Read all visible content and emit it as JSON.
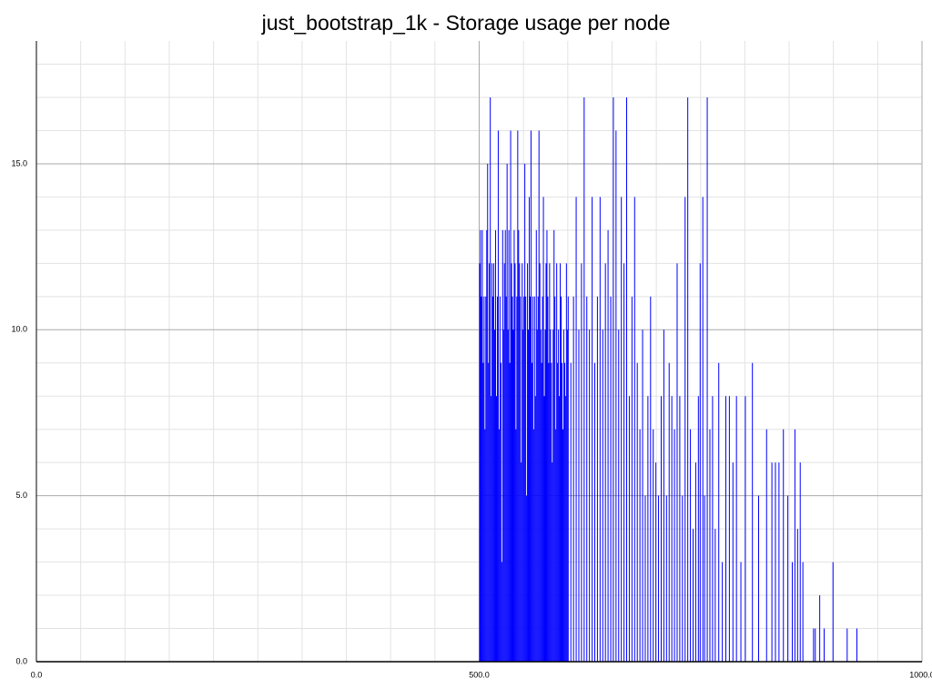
{
  "chart_data": {
    "type": "bar",
    "title": "just_bootstrap_1k - Storage usage per node",
    "color": "#0000ff",
    "xlim": [
      0,
      1000
    ],
    "ylim": [
      0,
      18.7
    ],
    "xticks": [
      {
        "value": 0,
        "label": "0.0"
      },
      {
        "value": 500,
        "label": "500.0"
      },
      {
        "value": 1000,
        "label": "1000.0"
      }
    ],
    "yticks": [
      {
        "value": 0,
        "label": "0.0"
      },
      {
        "value": 5,
        "label": "5.0"
      },
      {
        "value": 10,
        "label": "10.0"
      },
      {
        "value": 15,
        "label": "15.0"
      }
    ],
    "grid": true,
    "minor_grid": true,
    "x": [
      500,
      501,
      502,
      503,
      504,
      505,
      506,
      507,
      508,
      509,
      510,
      511,
      512,
      513,
      514,
      515,
      516,
      517,
      518,
      519,
      520,
      521,
      522,
      523,
      524,
      525,
      526,
      527,
      528,
      529,
      530,
      531,
      532,
      533,
      534,
      535,
      536,
      537,
      538,
      539,
      540,
      541,
      542,
      543,
      544,
      545,
      546,
      547,
      548,
      549,
      550,
      551,
      552,
      553,
      554,
      555,
      556,
      557,
      558,
      559,
      560,
      561,
      562,
      563,
      564,
      565,
      566,
      567,
      568,
      569,
      570,
      571,
      572,
      573,
      574,
      575,
      576,
      577,
      578,
      579,
      580,
      581,
      582,
      583,
      584,
      585,
      586,
      587,
      588,
      589,
      590,
      591,
      592,
      593,
      594,
      595,
      596,
      597,
      598,
      599,
      600,
      603,
      606,
      609,
      612,
      615,
      618,
      621,
      624,
      627,
      630,
      633,
      636,
      639,
      642,
      645,
      648,
      651,
      654,
      657,
      660,
      663,
      666,
      669,
      672,
      675,
      678,
      681,
      684,
      687,
      690,
      693,
      696,
      699,
      702,
      705,
      708,
      711,
      714,
      717,
      720,
      723,
      726,
      729,
      732,
      735,
      738,
      741,
      744,
      747,
      749,
      752,
      754,
      757,
      760,
      763,
      766,
      770,
      774,
      778,
      782,
      786,
      790,
      795,
      800,
      808,
      815,
      824,
      830,
      834,
      838,
      843,
      848,
      853,
      856,
      859,
      862,
      865,
      877,
      879,
      884,
      889,
      899,
      915,
      926
    ],
    "values": [
      12,
      13,
      11,
      13,
      9,
      11,
      7,
      11,
      13,
      15,
      9,
      12,
      17,
      8,
      12,
      11,
      12,
      10,
      13,
      8,
      11,
      16,
      7,
      11,
      9,
      3,
      13,
      10,
      12,
      13,
      11,
      15,
      10,
      13,
      9,
      16,
      12,
      11,
      10,
      13,
      12,
      7,
      11,
      16,
      13,
      12,
      11,
      6,
      12,
      10,
      11,
      15,
      11,
      5,
      12,
      10,
      14,
      11,
      16,
      9,
      11,
      7,
      11,
      8,
      13,
      10,
      11,
      16,
      12,
      10,
      9,
      11,
      14,
      8,
      10,
      12,
      13,
      11,
      9,
      12,
      10,
      9,
      6,
      10,
      13,
      11,
      7,
      12,
      9,
      10,
      8,
      12,
      11,
      9,
      7,
      10,
      9,
      8,
      12,
      10,
      11,
      9,
      11,
      14,
      10,
      12,
      17,
      11,
      10,
      14,
      9,
      11,
      14,
      10,
      12,
      13,
      11,
      17,
      16,
      10,
      14,
      12,
      17,
      8,
      11,
      14,
      9,
      7,
      10,
      5,
      8,
      11,
      7,
      6,
      5,
      8,
      10,
      5,
      9,
      8,
      7,
      12,
      8,
      5,
      14,
      17,
      7,
      4,
      6,
      8,
      12,
      14,
      5,
      17,
      7,
      8,
      4,
      9,
      3,
      8,
      8,
      6,
      8,
      3,
      8,
      9,
      5,
      7,
      6,
      6,
      6,
      7,
      5,
      3,
      7,
      4,
      6,
      3,
      1,
      1,
      2,
      1,
      3,
      1,
      1
    ]
  }
}
